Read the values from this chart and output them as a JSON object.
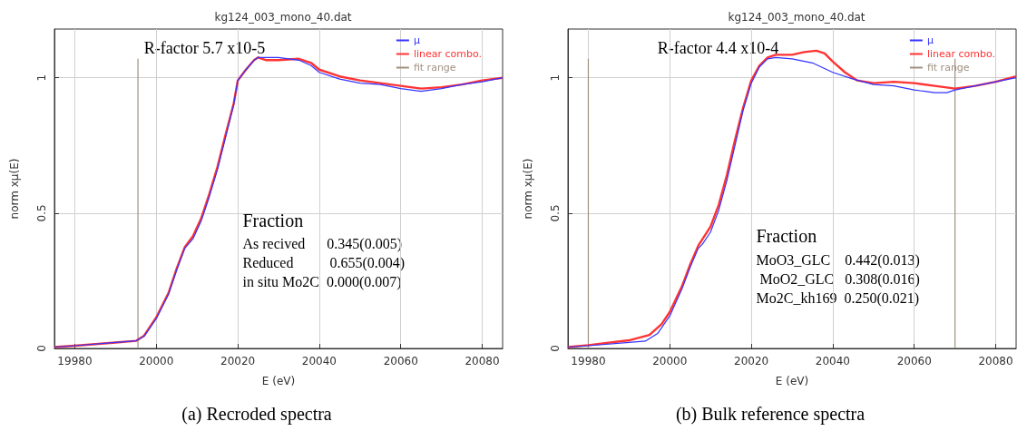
{
  "chart_data": [
    {
      "type": "line",
      "title": "kg124_003_mono_40.dat",
      "subtitle": "(a) Recroded spectra",
      "xlabel": "E (eV)",
      "ylabel": "norm xμ(E)",
      "xlim": [
        19975,
        20085
      ],
      "xticks": [
        19980,
        20000,
        20020,
        20040,
        20060,
        20080
      ],
      "ylim": [
        0,
        1.18
      ],
      "yticks": [
        0,
        0.5,
        1
      ],
      "grid": true,
      "legend": "top right",
      "marker": "none",
      "line_style": "solid",
      "annotations": [
        "R-factor 5.7 x10-5",
        "Fraction",
        "As recived      0.345(0.005)",
        "Reduced          0.655(0.004)",
        "in situ Mo2C  0.000(0.007)"
      ],
      "series": [
        {
          "name": "μ",
          "color": "#3333ff",
          "x": [
            19975,
            19980,
            19990,
            19995,
            19997,
            20000,
            20003,
            20005,
            20007,
            20009,
            20011,
            20013,
            20015,
            20017,
            20019,
            20020,
            20022,
            20024,
            20025,
            20030,
            20035,
            20038,
            20040,
            20045,
            20050,
            20055,
            20060,
            20065,
            20070,
            20075,
            20080,
            20085
          ],
          "values": [
            0.005,
            0.01,
            0.022,
            0.028,
            0.045,
            0.11,
            0.2,
            0.29,
            0.37,
            0.405,
            0.47,
            0.56,
            0.66,
            0.78,
            0.9,
            0.99,
            1.03,
            1.065,
            1.075,
            1.075,
            1.065,
            1.045,
            1.02,
            0.995,
            0.98,
            0.975,
            0.96,
            0.95,
            0.96,
            0.975,
            0.985,
            1.0
          ]
        },
        {
          "name": "linear combo.",
          "color": "#ff3333",
          "x": [
            19975,
            19980,
            19990,
            19995,
            19997,
            20000,
            20003,
            20005,
            20007,
            20009,
            20011,
            20013,
            20015,
            20017,
            20019,
            20020,
            20022,
            20024,
            20025,
            20027,
            20030,
            20035,
            20038,
            20040,
            20045,
            20050,
            20055,
            20060,
            20065,
            20070,
            20075,
            20080,
            20085
          ],
          "values": [
            0.005,
            0.01,
            0.022,
            0.028,
            0.047,
            0.115,
            0.205,
            0.295,
            0.375,
            0.415,
            0.48,
            0.57,
            0.67,
            0.79,
            0.905,
            0.99,
            1.03,
            1.065,
            1.075,
            1.065,
            1.065,
            1.07,
            1.055,
            1.03,
            1.005,
            0.99,
            0.98,
            0.97,
            0.96,
            0.965,
            0.975,
            0.99,
            1.0
          ]
        },
        {
          "name": "fit range",
          "color": "#a09080",
          "x": [
            19995.5,
            19995.5
          ],
          "values": [
            0,
            1.07
          ]
        }
      ]
    },
    {
      "type": "line",
      "title": "kg124_003_mono_40.dat",
      "subtitle": "(b) Bulk reference spectra",
      "xlabel": "E (eV)",
      "ylabel": "norm xμ(E)",
      "xlim": [
        19975,
        20085
      ],
      "xticks": [
        19980,
        20000,
        20020,
        20040,
        20060,
        20080
      ],
      "ylim": [
        0,
        1.18
      ],
      "yticks": [
        0,
        0.5,
        1
      ],
      "grid": true,
      "legend": "top right",
      "marker": "none",
      "line_style": "solid",
      "annotations": [
        "R-factor 4.4 x10-4",
        "Fraction",
        "MoO3_GLC    0.442(0.013)",
        " MoO2_GLC   0.308(0.016)",
        "Mo2C_kh169  0.250(0.021)"
      ],
      "series": [
        {
          "name": "μ",
          "color": "#3333ff",
          "x": [
            19975,
            19980,
            19990,
            19994,
            19997,
            20000,
            20003,
            20005,
            20007,
            20008,
            20010,
            20012,
            20014,
            20016,
            20018,
            20020,
            20022,
            20024,
            20026,
            20030,
            20035,
            20040,
            20045,
            20050,
            20055,
            20060,
            20065,
            20068,
            20070,
            20075,
            20080,
            20085
          ],
          "values": [
            0.005,
            0.01,
            0.022,
            0.027,
            0.055,
            0.12,
            0.22,
            0.3,
            0.37,
            0.385,
            0.43,
            0.51,
            0.62,
            0.75,
            0.88,
            0.98,
            1.04,
            1.07,
            1.075,
            1.07,
            1.055,
            1.02,
            0.995,
            0.975,
            0.97,
            0.955,
            0.945,
            0.945,
            0.955,
            0.97,
            0.985,
            1.0
          ]
        },
        {
          "name": "linear combo.",
          "color": "#ff3333",
          "x": [
            19975,
            19980,
            19990,
            19995,
            19998,
            20000,
            20003,
            20005,
            20007,
            20010,
            20012,
            20014,
            20016,
            20018,
            20020,
            20022,
            20024,
            20026,
            20030,
            20033,
            20036,
            20038,
            20040,
            20043,
            20046,
            20050,
            20055,
            20060,
            20065,
            20070,
            20075,
            20080,
            20085
          ],
          "values": [
            0.005,
            0.012,
            0.03,
            0.05,
            0.09,
            0.135,
            0.23,
            0.31,
            0.38,
            0.45,
            0.53,
            0.64,
            0.77,
            0.89,
            0.99,
            1.045,
            1.075,
            1.085,
            1.085,
            1.095,
            1.1,
            1.09,
            1.06,
            1.02,
            0.99,
            0.98,
            0.985,
            0.98,
            0.97,
            0.96,
            0.97,
            0.985,
            1.005
          ]
        },
        {
          "name": "fit range",
          "color": "#a09080",
          "x": [
            19980,
            19980,
            20025,
            20070,
            20070
          ],
          "values": [
            0,
            1.07,
            null,
            0,
            1.07
          ]
        }
      ]
    }
  ]
}
